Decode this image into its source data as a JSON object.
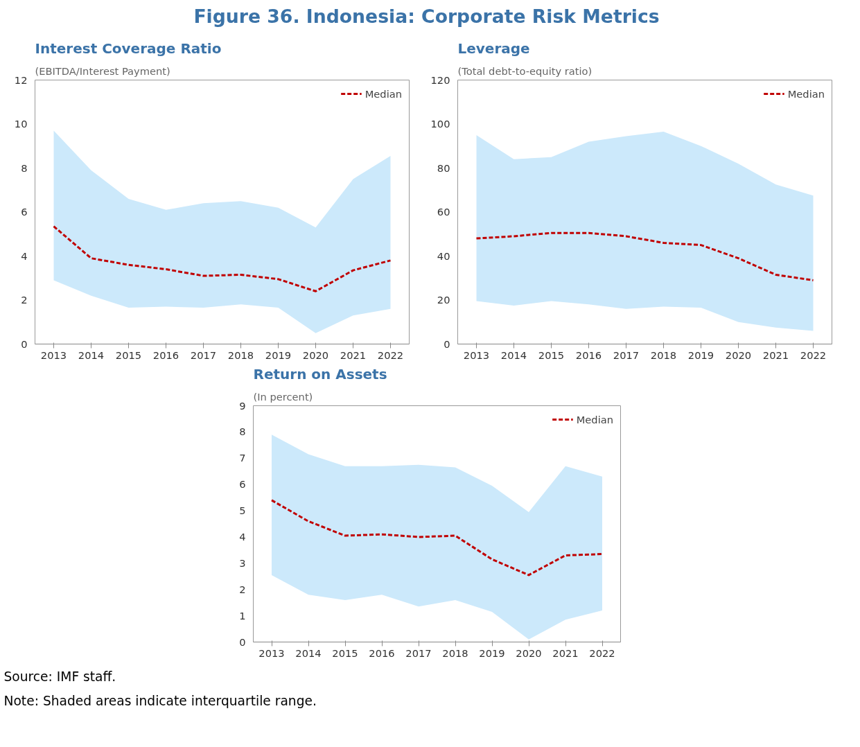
{
  "chart_data": [
    {
      "type": "other",
      "title": "Figure 36. Indonesia: Corporate Risk Metrics"
    },
    {
      "type": "line",
      "title": "Interest Coverage Ratio",
      "subtitle": "(EBITDA/Interest Payment)",
      "categories": [
        "2013",
        "2014",
        "2015",
        "2016",
        "2017",
        "2018",
        "2019",
        "2020",
        "2021",
        "2022"
      ],
      "ylim": [
        0,
        12
      ],
      "yticks": [
        0,
        2,
        4,
        6,
        8,
        10,
        12
      ],
      "grid": false,
      "legend": "top right",
      "line_style": "dashed",
      "marker": "none",
      "series": [
        {
          "name": "Median",
          "color": "#c00000",
          "values": [
            5.35,
            3.9,
            3.6,
            3.4,
            3.1,
            3.15,
            2.95,
            2.4,
            3.35,
            3.8
          ],
          "lower": [
            2.9,
            2.2,
            1.65,
            1.7,
            1.65,
            1.8,
            1.65,
            0.5,
            1.3,
            1.6
          ],
          "upper": [
            9.7,
            7.9,
            6.6,
            6.1,
            6.4,
            6.5,
            6.2,
            5.3,
            7.5,
            8.55
          ]
        }
      ]
    },
    {
      "type": "line",
      "title": "Leverage",
      "subtitle": "(Total debt-to-equity ratio)",
      "categories": [
        "2013",
        "2014",
        "2015",
        "2016",
        "2017",
        "2018",
        "2019",
        "2020",
        "2021",
        "2022"
      ],
      "ylim": [
        0,
        120
      ],
      "yticks": [
        0,
        20,
        40,
        60,
        80,
        100,
        120
      ],
      "grid": false,
      "legend": "top right",
      "line_style": "dashed",
      "marker": "none",
      "series": [
        {
          "name": "Median",
          "color": "#c00000",
          "values": [
            48,
            49,
            50.5,
            50.5,
            49,
            46,
            45,
            39,
            31.5,
            29
          ],
          "lower": [
            19.5,
            17.5,
            19.5,
            18,
            16,
            17,
            16.5,
            10,
            7.5,
            6
          ],
          "upper": [
            95,
            84,
            85,
            92,
            94.5,
            96.5,
            90,
            82,
            72.5,
            67.5
          ]
        }
      ]
    },
    {
      "type": "line",
      "title": "Return on Assets",
      "subtitle": "(In percent)",
      "categories": [
        "2013",
        "2014",
        "2015",
        "2016",
        "2017",
        "2018",
        "2019",
        "2020",
        "2021",
        "2022"
      ],
      "ylim": [
        0,
        9
      ],
      "yticks": [
        0,
        1,
        2,
        3,
        4,
        5,
        6,
        7,
        8,
        9
      ],
      "grid": false,
      "legend": "top right",
      "line_style": "dashed",
      "marker": "none",
      "series": [
        {
          "name": "Median",
          "color": "#c00000",
          "values": [
            5.4,
            4.6,
            4.05,
            4.1,
            4.0,
            4.05,
            3.15,
            2.55,
            3.3,
            3.35
          ],
          "lower": [
            2.55,
            1.8,
            1.6,
            1.8,
            1.35,
            1.6,
            1.15,
            0.1,
            0.85,
            1.2
          ],
          "upper": [
            7.9,
            7.15,
            6.7,
            6.7,
            6.75,
            6.65,
            5.95,
            4.95,
            6.7,
            6.3
          ]
        }
      ]
    },
    {
      "type": "other",
      "annotations": [
        "Source: IMF staff.",
        "Note: Shaded areas indicate interquartile range."
      ]
    }
  ]
}
